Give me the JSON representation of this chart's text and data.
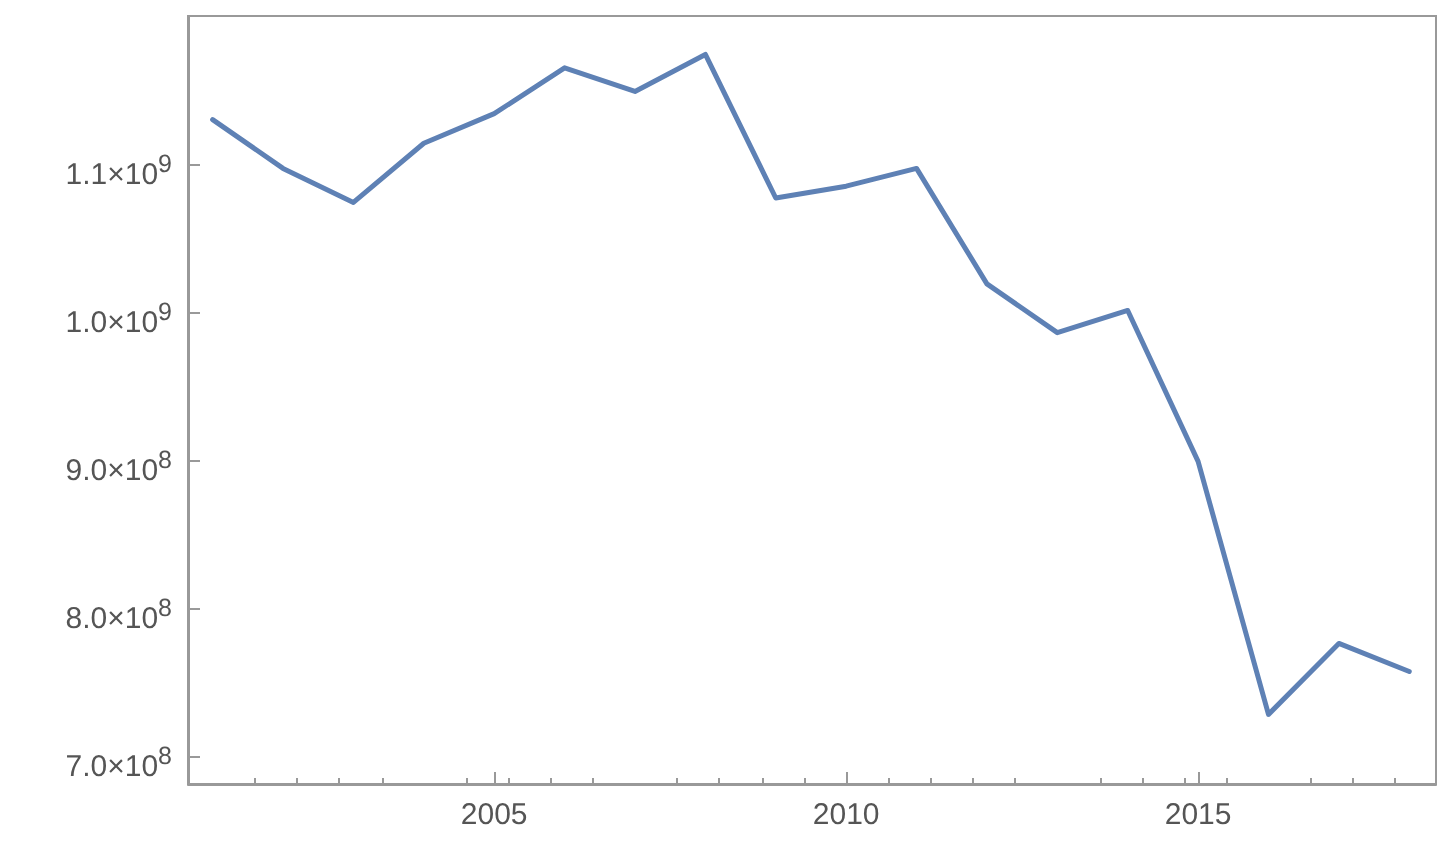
{
  "chart_data": {
    "type": "line",
    "x": [
      2001,
      2002,
      2003,
      2004,
      2005,
      2006,
      2007,
      2008,
      2009,
      2010,
      2011,
      2012,
      2013,
      2014,
      2015,
      2016,
      2017,
      2018
    ],
    "series": [
      {
        "color": "#5e81b5",
        "values": [
          1130000000.0,
          1097000000.0,
          1074000000.0,
          1114000000.0,
          1134000000.0,
          1165000000.0,
          1149000000.0,
          1174000000.0,
          1077000000.0,
          1085000000.0,
          1097000000.0,
          1019000000.0,
          986000000.0,
          1001000000.0,
          899000000.0,
          728000000.0,
          776000000.0,
          757000000.0
        ]
      }
    ],
    "xlim": [
      2000.65,
      2018.38
    ],
    "xticks": [
      2005,
      2010,
      2015
    ],
    "ylim": [
      681000000.0,
      1200000000.0
    ],
    "yticks": [
      {
        "value": 700000000.0,
        "label": "7.0×10$^{8}$"
      },
      {
        "value": 800000000.0,
        "label": "8.0×10$^{8}$"
      },
      {
        "value": 900000000.0,
        "label": "9.0×10$^{8}$"
      },
      {
        "value": 1000000000.0,
        "label": "1.0×10$^{9}$"
      },
      {
        "value": 1100000000.0,
        "label": "1.1×10$^{9}$"
      }
    ],
    "grid": false,
    "marker": "none",
    "line_style": "solid"
  }
}
